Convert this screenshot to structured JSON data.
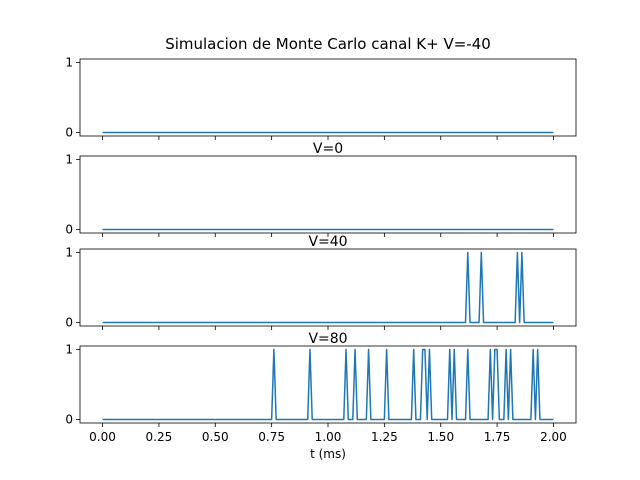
{
  "chart_data": [
    {
      "type": "line",
      "title": "Simulacion de Monte Carlo canal K+ V=-40",
      "xlim": [
        -0.1,
        2.1
      ],
      "ylim": [
        -0.05,
        1.05
      ],
      "yticks": [
        "0",
        "1"
      ],
      "series_color": "#1f77b4",
      "x": [
        0,
        2.0
      ],
      "y": [
        0,
        0
      ]
    },
    {
      "type": "line",
      "title": "V=0",
      "xlim": [
        -0.1,
        2.1
      ],
      "ylim": [
        -0.05,
        1.05
      ],
      "yticks": [
        "0",
        "1"
      ],
      "series_color": "#1f77b4",
      "x": [
        0,
        2.0
      ],
      "y": [
        0,
        0
      ]
    },
    {
      "type": "line",
      "title": "V=40",
      "xlim": [
        -0.1,
        2.1
      ],
      "ylim": [
        -0.05,
        1.05
      ],
      "yticks": [
        "0",
        "1"
      ],
      "series_color": "#1f77b4",
      "x": [
        0,
        1.61,
        1.62,
        1.63,
        1.67,
        1.68,
        1.69,
        1.83,
        1.84,
        1.85,
        1.86,
        1.87,
        2.0
      ],
      "y": [
        0,
        0,
        1,
        0,
        0,
        1,
        0,
        0,
        1,
        0,
        1,
        0,
        0
      ]
    },
    {
      "type": "line",
      "title": "V=80",
      "xlim": [
        -0.1,
        2.1
      ],
      "ylim": [
        -0.05,
        1.05
      ],
      "yticks": [
        "0",
        "1"
      ],
      "xlabel": "t (ms)",
      "xticks": [
        "0.00",
        "0.25",
        "0.50",
        "0.75",
        "1.00",
        "1.25",
        "1.50",
        "1.75",
        "2.00"
      ],
      "xtick_values": [
        0,
        0.25,
        0.5,
        0.75,
        1.0,
        1.25,
        1.5,
        1.75,
        2.0
      ],
      "series_color": "#1f77b4",
      "x": [
        0,
        0.75,
        0.76,
        0.77,
        0.91,
        0.92,
        0.93,
        1.07,
        1.08,
        1.09,
        1.11,
        1.12,
        1.13,
        1.17,
        1.18,
        1.19,
        1.25,
        1.26,
        1.27,
        1.37,
        1.38,
        1.39,
        1.41,
        1.42,
        1.43,
        1.44,
        1.45,
        1.46,
        1.47,
        1.53,
        1.54,
        1.55,
        1.56,
        1.57,
        1.61,
        1.62,
        1.63,
        1.71,
        1.72,
        1.73,
        1.74,
        1.75,
        1.76,
        1.78,
        1.79,
        1.8,
        1.81,
        1.82,
        1.9,
        1.91,
        1.92,
        1.93,
        1.94,
        2.0
      ],
      "y": [
        0,
        0,
        1,
        0,
        0,
        1,
        0,
        0,
        1,
        0,
        0,
        1,
        0,
        0,
        1,
        0,
        0,
        1,
        0,
        0,
        1,
        0,
        0,
        1,
        1,
        0,
        1,
        0,
        0,
        0,
        1,
        0,
        1,
        0,
        0,
        1,
        0,
        0,
        1,
        0,
        1,
        1,
        0,
        0,
        1,
        0,
        1,
        0,
        0,
        1,
        0,
        1,
        0,
        0
      ]
    }
  ]
}
